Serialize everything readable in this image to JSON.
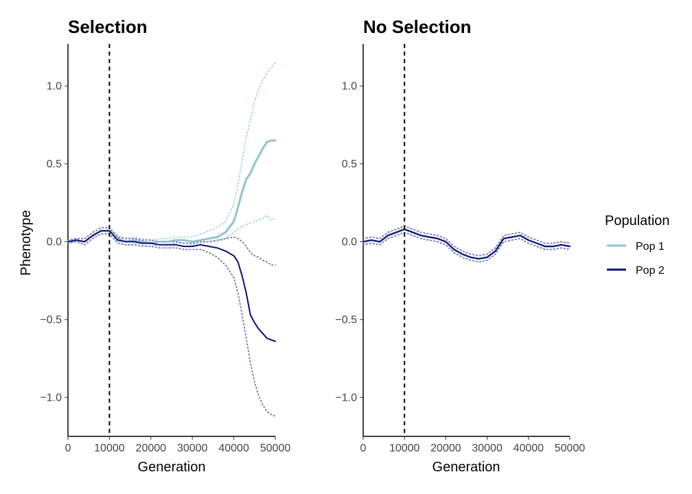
{
  "legend": {
    "title": "Population",
    "items": [
      {
        "label": "Pop 1",
        "color": "#92c2cf"
      },
      {
        "label": "Pop 2",
        "color": "#0d0d7a"
      }
    ]
  },
  "colors": {
    "pop1_mean": "#92c2cf",
    "pop2_mean": "#0d0d7a",
    "pop1_interval": "#a9d6d3",
    "pop2_interval": "#7b72b0",
    "marker_line": "#000000"
  },
  "chart_data": [
    {
      "type": "line",
      "title": "Selection",
      "xlabel": "Generation",
      "ylabel": "Phenotype",
      "xlim": [
        0,
        50000
      ],
      "ylim": [
        -1.25,
        1.27
      ],
      "xticks": [
        0,
        10000,
        20000,
        30000,
        40000,
        50000
      ],
      "yticks": [
        -1.0,
        -0.5,
        0.0,
        0.5,
        1.0
      ],
      "ytick_labels": [
        "−1.0",
        "−0.5",
        "0.0",
        "0.5",
        "1.0"
      ],
      "vline": 10000,
      "grid": false,
      "legend_position": "right",
      "series": [
        {
          "name": "Pop 1",
          "style": "solid",
          "x": [
            0,
            2000,
            4000,
            6000,
            8000,
            10000,
            12000,
            14000,
            16000,
            18000,
            20000,
            22000,
            24000,
            26000,
            28000,
            30000,
            32000,
            34000,
            36000,
            38000,
            40000,
            41000,
            42000,
            43000,
            44000,
            45000,
            46000,
            47000,
            48000,
            49000,
            50000
          ],
          "y": [
            0.0,
            0.01,
            0.0,
            0.04,
            0.07,
            0.07,
            0.02,
            0.0,
            0.01,
            0.0,
            -0.01,
            0.0,
            0.0,
            0.01,
            0.01,
            0.0,
            0.01,
            0.02,
            0.03,
            0.06,
            0.13,
            0.22,
            0.32,
            0.4,
            0.44,
            0.5,
            0.55,
            0.6,
            0.64,
            0.65,
            0.65
          ]
        },
        {
          "name": "Pop 1 upper",
          "style": "dotted",
          "x": [
            0,
            2000,
            4000,
            6000,
            8000,
            10000,
            12000,
            14000,
            16000,
            18000,
            20000,
            22000,
            24000,
            26000,
            28000,
            30000,
            32000,
            34000,
            36000,
            38000,
            40000,
            41000,
            42000,
            43000,
            44000,
            45000,
            46000,
            47000,
            48000,
            49000,
            50000
          ],
          "y": [
            0.01,
            0.02,
            0.02,
            0.06,
            0.09,
            0.09,
            0.04,
            0.02,
            0.03,
            0.02,
            0.01,
            0.02,
            0.02,
            0.03,
            0.03,
            0.03,
            0.05,
            0.07,
            0.09,
            0.13,
            0.24,
            0.37,
            0.52,
            0.67,
            0.78,
            0.9,
            0.98,
            1.04,
            1.08,
            1.12,
            1.15
          ]
        },
        {
          "name": "Pop 1 lower",
          "style": "dotted",
          "x": [
            0,
            2000,
            4000,
            6000,
            8000,
            10000,
            12000,
            14000,
            16000,
            18000,
            20000,
            22000,
            24000,
            26000,
            28000,
            30000,
            32000,
            34000,
            36000,
            38000,
            40000,
            41000,
            42000,
            43000,
            44000,
            45000,
            46000,
            47000,
            48000,
            49000,
            50000
          ],
          "y": [
            -0.01,
            0.0,
            -0.02,
            0.02,
            0.05,
            0.05,
            0.0,
            -0.02,
            -0.01,
            -0.02,
            -0.03,
            -0.02,
            -0.02,
            -0.01,
            -0.01,
            -0.02,
            -0.01,
            0.0,
            0.0,
            0.02,
            0.06,
            0.08,
            0.1,
            0.11,
            0.12,
            0.13,
            0.14,
            0.15,
            0.17,
            0.14,
            0.15
          ]
        },
        {
          "name": "Pop 2",
          "style": "solid",
          "x": [
            0,
            2000,
            4000,
            6000,
            8000,
            10000,
            12000,
            14000,
            16000,
            18000,
            20000,
            22000,
            24000,
            26000,
            28000,
            30000,
            32000,
            34000,
            36000,
            38000,
            40000,
            41000,
            42000,
            43000,
            44000,
            45000,
            46000,
            47000,
            48000,
            49000,
            50000
          ],
          "y": [
            0.0,
            0.01,
            0.0,
            0.04,
            0.07,
            0.07,
            0.01,
            0.0,
            0.0,
            -0.01,
            -0.01,
            -0.02,
            -0.02,
            -0.02,
            -0.03,
            -0.03,
            -0.02,
            -0.03,
            -0.04,
            -0.06,
            -0.09,
            -0.13,
            -0.22,
            -0.33,
            -0.47,
            -0.52,
            -0.56,
            -0.59,
            -0.62,
            -0.63,
            -0.64
          ]
        },
        {
          "name": "Pop 2 upper",
          "style": "dotted",
          "x": [
            0,
            2000,
            4000,
            6000,
            8000,
            10000,
            12000,
            14000,
            16000,
            18000,
            20000,
            22000,
            24000,
            26000,
            28000,
            30000,
            32000,
            34000,
            36000,
            38000,
            40000,
            41000,
            42000,
            43000,
            44000,
            45000,
            46000,
            47000,
            48000,
            49000,
            50000
          ],
          "y": [
            0.01,
            0.02,
            0.02,
            0.06,
            0.09,
            0.09,
            0.03,
            0.02,
            0.02,
            0.01,
            0.01,
            0.0,
            0.0,
            0.0,
            -0.01,
            -0.01,
            0.0,
            0.0,
            0.01,
            0.02,
            0.03,
            0.02,
            0.0,
            -0.03,
            -0.07,
            -0.09,
            -0.1,
            -0.12,
            -0.13,
            -0.15,
            -0.15
          ]
        },
        {
          "name": "Pop 2 lower",
          "style": "dotted",
          "x": [
            0,
            2000,
            4000,
            6000,
            8000,
            10000,
            12000,
            14000,
            16000,
            18000,
            20000,
            22000,
            24000,
            26000,
            28000,
            30000,
            32000,
            34000,
            36000,
            38000,
            40000,
            41000,
            42000,
            43000,
            44000,
            45000,
            46000,
            47000,
            48000,
            49000,
            50000
          ],
          "y": [
            -0.01,
            0.0,
            -0.02,
            0.02,
            0.05,
            0.05,
            -0.01,
            -0.02,
            -0.02,
            -0.03,
            -0.03,
            -0.04,
            -0.04,
            -0.04,
            -0.05,
            -0.05,
            -0.05,
            -0.07,
            -0.1,
            -0.15,
            -0.23,
            -0.33,
            -0.47,
            -0.62,
            -0.78,
            -0.9,
            -0.99,
            -1.05,
            -1.09,
            -1.11,
            -1.12
          ]
        }
      ]
    },
    {
      "type": "line",
      "title": "No Selection",
      "xlabel": "Generation",
      "ylabel": "",
      "xlim": [
        0,
        50000
      ],
      "ylim": [
        -1.25,
        1.27
      ],
      "xticks": [
        0,
        10000,
        20000,
        30000,
        40000,
        50000
      ],
      "yticks": [
        -1.0,
        -0.5,
        0.0,
        0.5,
        1.0
      ],
      "ytick_labels": [
        "−1.0",
        "−0.5",
        "0.0",
        "0.5",
        "1.0"
      ],
      "vline": 10000,
      "grid": false,
      "legend_position": "right",
      "series": [
        {
          "name": "Pop 1",
          "style": "solid",
          "x": [
            0,
            2000,
            4000,
            6000,
            8000,
            10000,
            12000,
            14000,
            16000,
            18000,
            20000,
            22000,
            24000,
            26000,
            28000,
            30000,
            32000,
            34000,
            36000,
            38000,
            40000,
            42000,
            44000,
            46000,
            48000,
            50000
          ],
          "y": [
            0.0,
            0.01,
            0.0,
            0.04,
            0.06,
            0.08,
            0.06,
            0.04,
            0.03,
            0.02,
            0.0,
            -0.05,
            -0.08,
            -0.1,
            -0.11,
            -0.1,
            -0.06,
            0.02,
            0.03,
            0.04,
            0.01,
            -0.01,
            -0.03,
            -0.03,
            -0.02,
            -0.03
          ]
        },
        {
          "name": "Pop 1 upper",
          "style": "dotted",
          "x": [
            0,
            2000,
            4000,
            6000,
            8000,
            10000,
            12000,
            14000,
            16000,
            18000,
            20000,
            22000,
            24000,
            26000,
            28000,
            30000,
            32000,
            34000,
            36000,
            38000,
            40000,
            42000,
            44000,
            46000,
            48000,
            50000
          ],
          "y": [
            0.02,
            0.03,
            0.02,
            0.06,
            0.08,
            0.1,
            0.08,
            0.06,
            0.05,
            0.04,
            0.02,
            -0.03,
            -0.06,
            -0.08,
            -0.09,
            -0.08,
            -0.04,
            0.04,
            0.05,
            0.06,
            0.03,
            0.01,
            -0.01,
            -0.01,
            0.0,
            -0.01
          ]
        },
        {
          "name": "Pop 1 lower",
          "style": "dotted",
          "x": [
            0,
            2000,
            4000,
            6000,
            8000,
            10000,
            12000,
            14000,
            16000,
            18000,
            20000,
            22000,
            24000,
            26000,
            28000,
            30000,
            32000,
            34000,
            36000,
            38000,
            40000,
            42000,
            44000,
            46000,
            48000,
            50000
          ],
          "y": [
            -0.02,
            -0.01,
            -0.02,
            0.02,
            0.04,
            0.06,
            0.04,
            0.02,
            0.01,
            0.0,
            -0.02,
            -0.07,
            -0.1,
            -0.12,
            -0.13,
            -0.12,
            -0.08,
            0.0,
            0.01,
            0.02,
            -0.01,
            -0.03,
            -0.05,
            -0.05,
            -0.04,
            -0.05
          ]
        },
        {
          "name": "Pop 2",
          "style": "solid",
          "x": [
            0,
            2000,
            4000,
            6000,
            8000,
            10000,
            12000,
            14000,
            16000,
            18000,
            20000,
            22000,
            24000,
            26000,
            28000,
            30000,
            32000,
            34000,
            36000,
            38000,
            40000,
            42000,
            44000,
            46000,
            48000,
            50000
          ],
          "y": [
            0.0,
            0.01,
            0.0,
            0.04,
            0.06,
            0.08,
            0.06,
            0.04,
            0.03,
            0.02,
            0.0,
            -0.05,
            -0.08,
            -0.1,
            -0.11,
            -0.1,
            -0.06,
            0.02,
            0.03,
            0.04,
            0.01,
            -0.01,
            -0.03,
            -0.03,
            -0.02,
            -0.03
          ]
        },
        {
          "name": "Pop 2 upper",
          "style": "dotted",
          "x": [
            0,
            2000,
            4000,
            6000,
            8000,
            10000,
            12000,
            14000,
            16000,
            18000,
            20000,
            22000,
            24000,
            26000,
            28000,
            30000,
            32000,
            34000,
            36000,
            38000,
            40000,
            42000,
            44000,
            46000,
            48000,
            50000
          ],
          "y": [
            0.02,
            0.03,
            0.02,
            0.06,
            0.08,
            0.1,
            0.08,
            0.06,
            0.05,
            0.04,
            0.02,
            -0.03,
            -0.06,
            -0.08,
            -0.09,
            -0.08,
            -0.04,
            0.04,
            0.05,
            0.06,
            0.03,
            0.01,
            -0.01,
            -0.01,
            0.0,
            -0.01
          ]
        },
        {
          "name": "Pop 2 lower",
          "style": "dotted",
          "x": [
            0,
            2000,
            4000,
            6000,
            8000,
            10000,
            12000,
            14000,
            16000,
            18000,
            20000,
            22000,
            24000,
            26000,
            28000,
            30000,
            32000,
            34000,
            36000,
            38000,
            40000,
            42000,
            44000,
            46000,
            48000,
            50000
          ],
          "y": [
            -0.02,
            -0.01,
            -0.02,
            0.02,
            0.04,
            0.06,
            0.04,
            0.02,
            0.01,
            0.0,
            -0.02,
            -0.07,
            -0.1,
            -0.12,
            -0.13,
            -0.12,
            -0.08,
            0.0,
            0.01,
            0.02,
            -0.01,
            -0.03,
            -0.05,
            -0.05,
            -0.04,
            -0.05
          ]
        }
      ]
    }
  ]
}
